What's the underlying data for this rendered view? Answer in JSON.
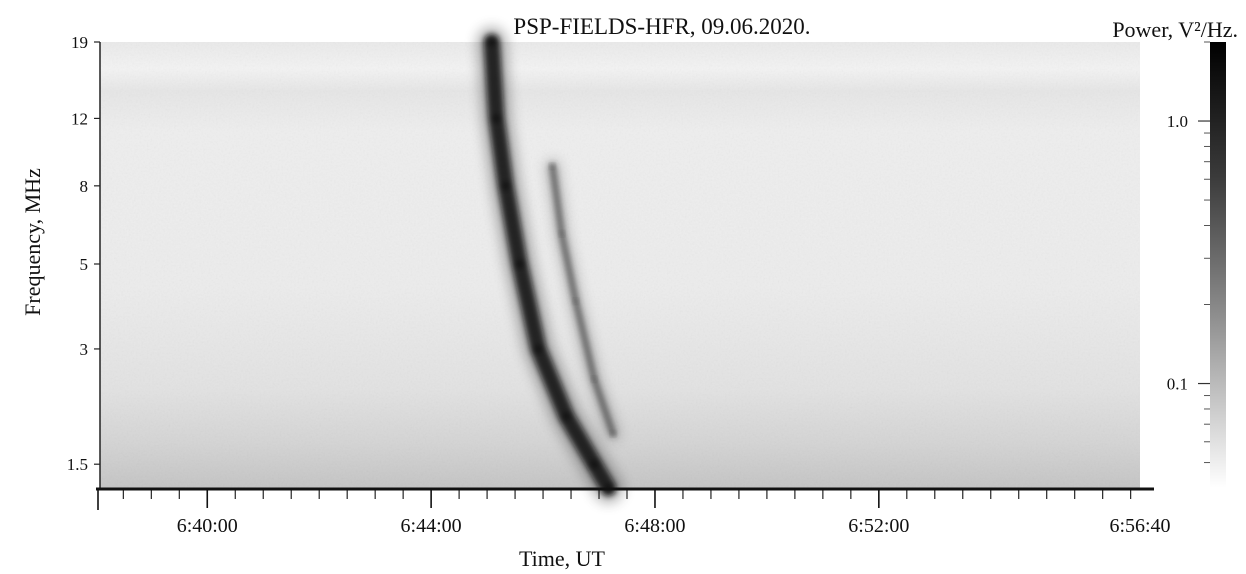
{
  "chart_data": {
    "type": "heatmap",
    "title": "PSP-FIELDS-HFR, 09.06.2020.",
    "xlabel": "Time, UT",
    "ylabel": "Frequency, MHz",
    "colorbar_label": "Power, V²/Hz.",
    "x_scale": "time",
    "x_range": [
      "6:38:05",
      "6:56:40"
    ],
    "x_ticks": [
      "6:40:00",
      "6:44:00",
      "6:48:00",
      "6:52:00",
      "6:56:40"
    ],
    "y_scale": "log",
    "y_range": [
      1.3,
      19
    ],
    "y_ticks": [
      19,
      12,
      8,
      5,
      3,
      1.5
    ],
    "colorbar_scale": "log",
    "colorbar_range": [
      0.04,
      2.0
    ],
    "colorbar_ticks": [
      1.0,
      0.1
    ],
    "colormap": [
      "#ffffff",
      "#000000"
    ],
    "features": [
      {
        "label": "",
        "points": [
          {
            "time": "6:45:05",
            "freq_mhz": 19
          },
          {
            "time": "6:45:10",
            "freq_mhz": 12
          },
          {
            "time": "6:45:20",
            "freq_mhz": 8
          },
          {
            "time": "6:45:35",
            "freq_mhz": 5
          },
          {
            "time": "6:45:55",
            "freq_mhz": 3
          },
          {
            "time": "6:46:25",
            "freq_mhz": 2
          },
          {
            "time": "6:46:55",
            "freq_mhz": 1.5
          },
          {
            "time": "6:47:10",
            "freq_mhz": 1.3
          }
        ]
      },
      {
        "label": "",
        "points": [
          {
            "time": "6:46:10",
            "freq_mhz": 9
          },
          {
            "time": "6:46:20",
            "freq_mhz": 6
          },
          {
            "time": "6:46:35",
            "freq_mhz": 4
          },
          {
            "time": "6:46:55",
            "freq_mhz": 2.5
          },
          {
            "time": "6:47:15",
            "freq_mhz": 1.8
          }
        ]
      }
    ]
  }
}
